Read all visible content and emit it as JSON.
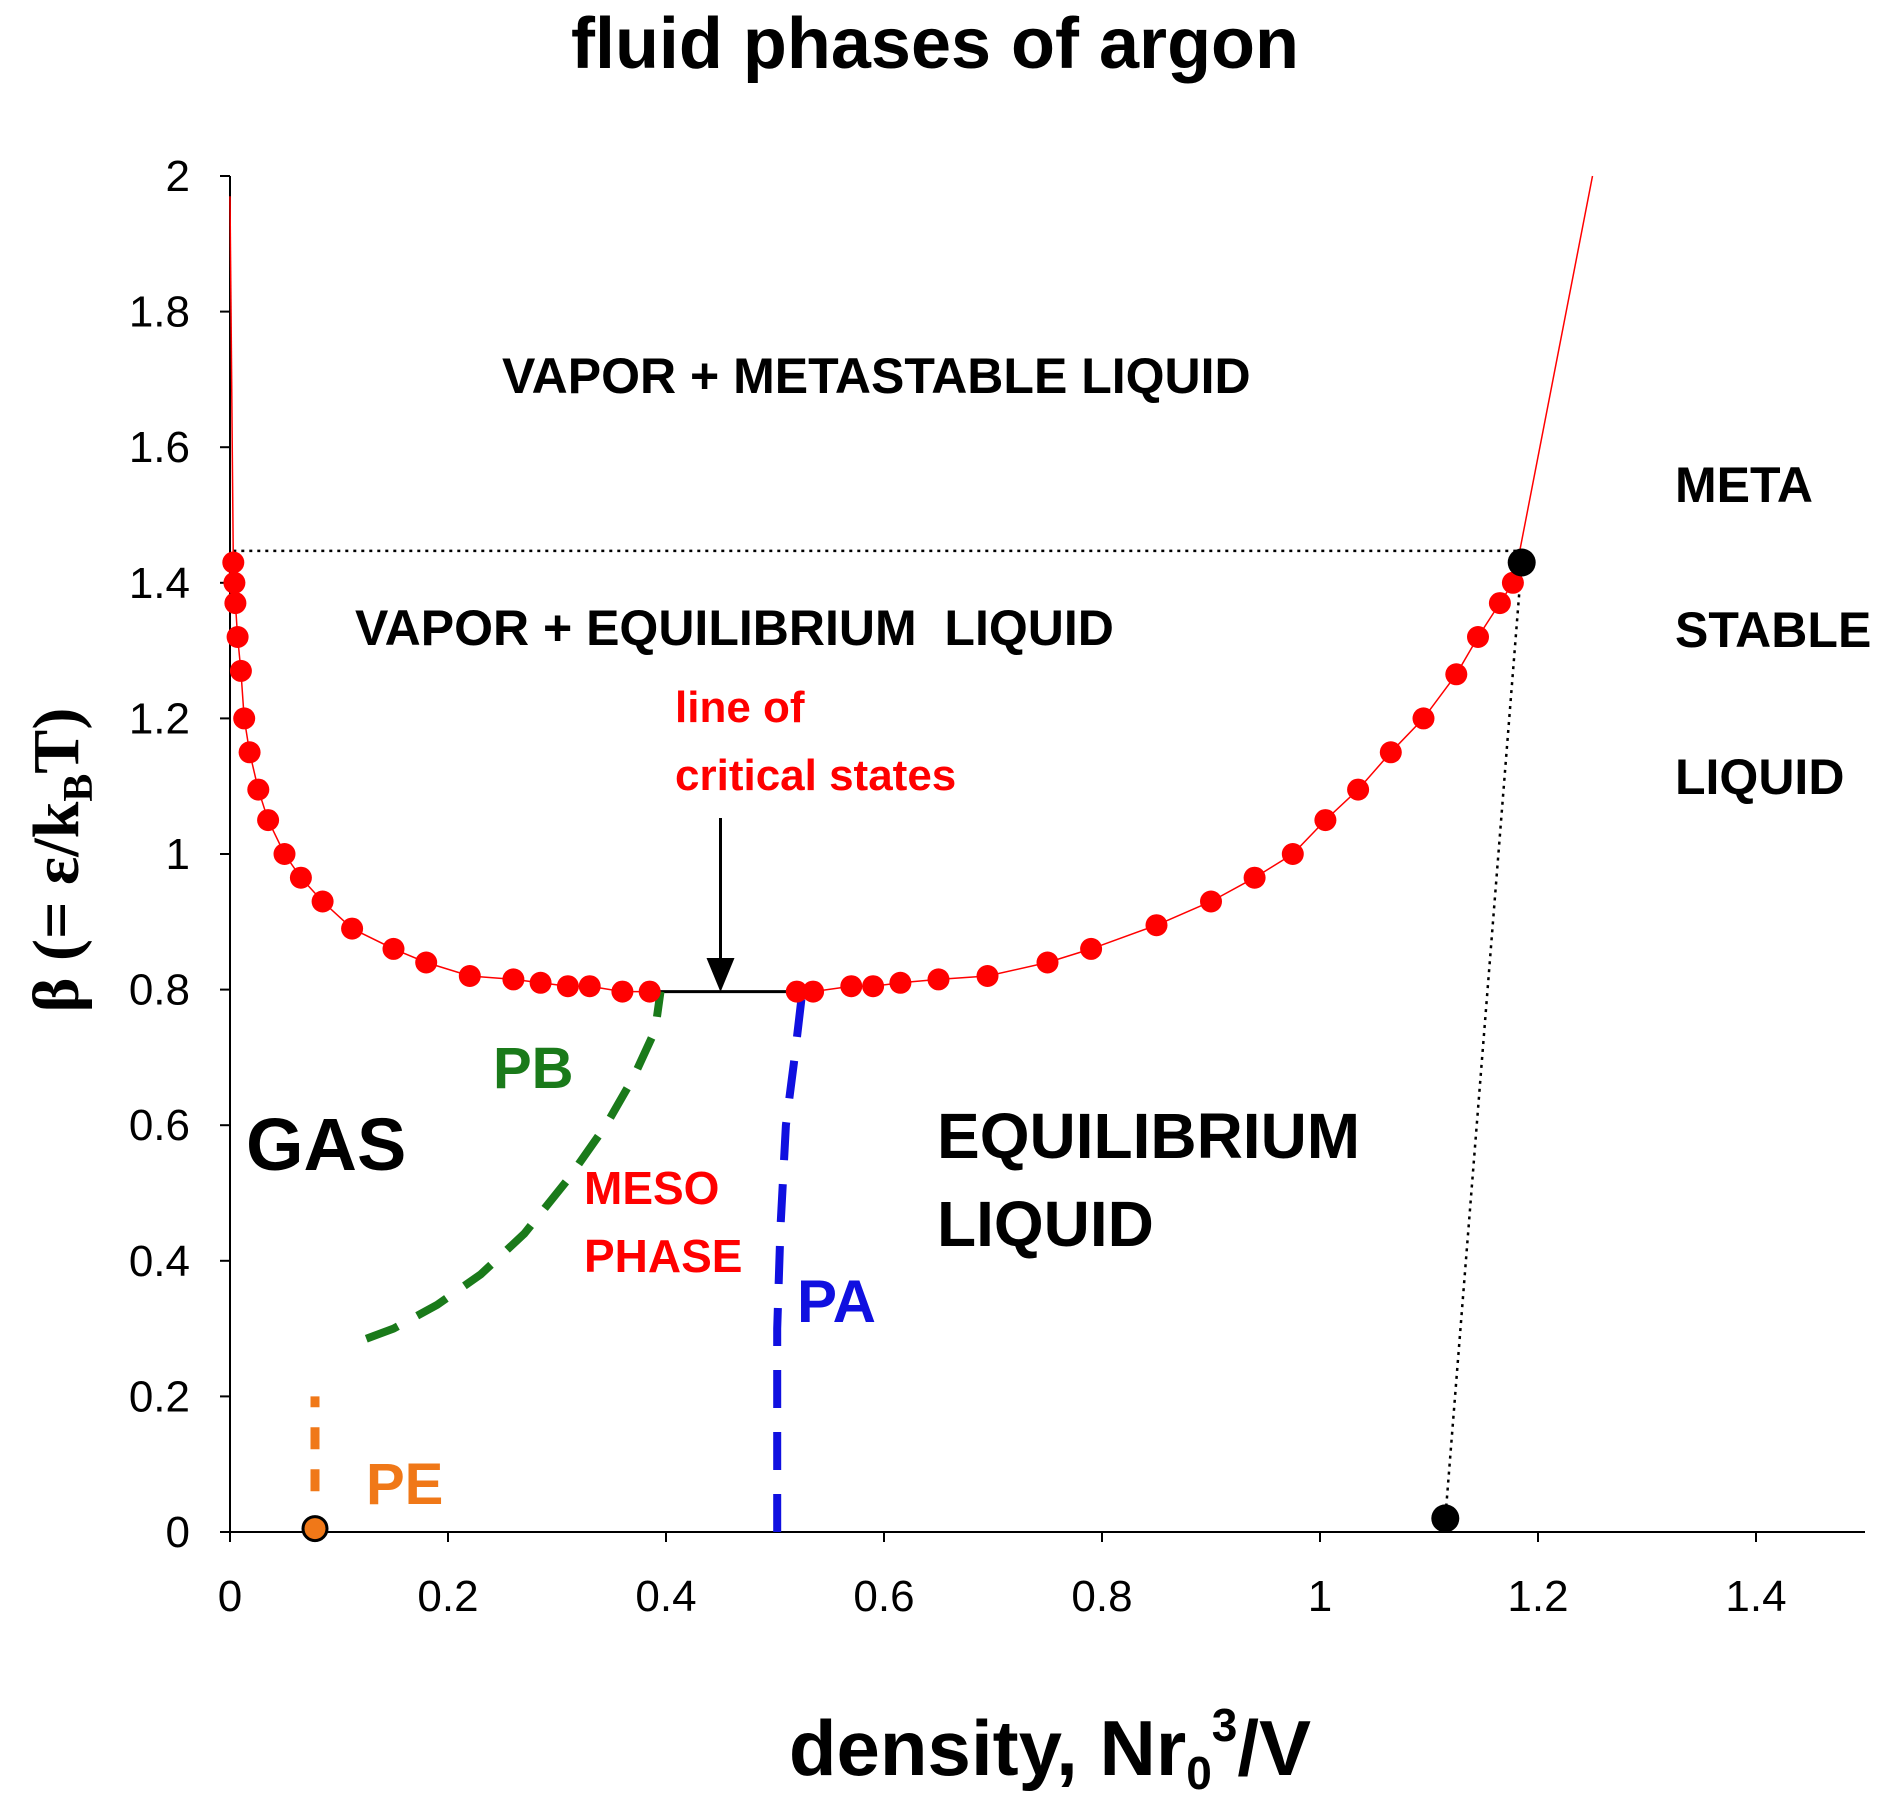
{
  "chart_data": {
    "type": "scatter",
    "title": "fluid phases of argon",
    "xlabel": {
      "main": "density, Nr",
      "sub": "0",
      "sup": "3",
      "tail": "/V"
    },
    "ylabel": {
      "main": "β (= ε/k",
      "sub": "B",
      "tail": "T)"
    },
    "xlim": [
      0,
      1.5
    ],
    "ylim": [
      0,
      2
    ],
    "xticks": [
      "0",
      "0.2",
      "0.4",
      "0.6",
      "0.8",
      "1",
      "1.2",
      "1.4"
    ],
    "yticks": [
      "0",
      "0.2",
      "0.4",
      "0.6",
      "0.8",
      "1",
      "1.2",
      "1.4",
      "1.6",
      "1.8",
      "2"
    ],
    "grid": false,
    "colors": {
      "coexistence": "#ff0000",
      "PB": "#1a7a1a",
      "PA": "#1010e0",
      "PE": "#f07818",
      "meso_text": "#ff0000",
      "critical_text": "#ff0000"
    },
    "coexistence_points": [
      [
        0.003,
        1.43
      ],
      [
        0.004,
        1.4
      ],
      [
        0.005,
        1.37
      ],
      [
        0.007,
        1.32
      ],
      [
        0.01,
        1.27
      ],
      [
        0.013,
        1.2
      ],
      [
        0.018,
        1.15
      ],
      [
        0.026,
        1.095
      ],
      [
        0.035,
        1.05
      ],
      [
        0.05,
        1.0
      ],
      [
        0.065,
        0.965
      ],
      [
        0.085,
        0.93
      ],
      [
        0.112,
        0.89
      ],
      [
        0.15,
        0.86
      ],
      [
        0.18,
        0.84
      ],
      [
        0.22,
        0.82
      ],
      [
        0.26,
        0.815
      ],
      [
        0.285,
        0.81
      ],
      [
        0.31,
        0.805
      ],
      [
        0.33,
        0.805
      ],
      [
        0.36,
        0.797
      ],
      [
        0.385,
        0.797
      ],
      [
        0.52,
        0.797
      ],
      [
        0.535,
        0.797
      ],
      [
        0.57,
        0.805
      ],
      [
        0.59,
        0.805
      ],
      [
        0.615,
        0.81
      ],
      [
        0.65,
        0.815
      ],
      [
        0.695,
        0.82
      ],
      [
        0.75,
        0.84
      ],
      [
        0.79,
        0.86
      ],
      [
        0.85,
        0.895
      ],
      [
        0.9,
        0.93
      ],
      [
        0.94,
        0.965
      ],
      [
        0.975,
        1.0
      ],
      [
        1.005,
        1.05
      ],
      [
        1.035,
        1.095
      ],
      [
        1.065,
        1.15
      ],
      [
        1.095,
        1.2
      ],
      [
        1.125,
        1.265
      ],
      [
        1.145,
        1.32
      ],
      [
        1.165,
        1.37
      ],
      [
        1.177,
        1.4
      ]
    ],
    "coexistence_extension": [
      [
        1.18,
        1.42
      ],
      [
        1.25,
        2.0
      ]
    ],
    "vapor_extension": [
      [
        0.003,
        1.43
      ],
      [
        0.0,
        1.97
      ]
    ],
    "critical_line": [
      [
        0.395,
        0.797
      ],
      [
        0.525,
        0.797
      ]
    ],
    "PB_line": [
      [
        0.125,
        0.285
      ],
      [
        0.15,
        0.3
      ],
      [
        0.19,
        0.335
      ],
      [
        0.23,
        0.38
      ],
      [
        0.27,
        0.44
      ],
      [
        0.31,
        0.52
      ],
      [
        0.345,
        0.6
      ],
      [
        0.37,
        0.67
      ],
      [
        0.39,
        0.74
      ],
      [
        0.395,
        0.797
      ]
    ],
    "PA_line": [
      [
        0.502,
        0.0
      ],
      [
        0.502,
        0.3
      ],
      [
        0.505,
        0.45
      ],
      [
        0.51,
        0.6
      ],
      [
        0.518,
        0.7
      ],
      [
        0.525,
        0.797
      ]
    ],
    "PE_line": [
      [
        0.078,
        0.06
      ],
      [
        0.078,
        0.2
      ]
    ],
    "black_points": [
      [
        1.185,
        1.43
      ],
      [
        1.115,
        0.02
      ]
    ],
    "orange_point": [
      0.078,
      0.005
    ],
    "dotted_lines": [
      [
        [
          0.003,
          1.447
        ],
        [
          1.185,
          1.447
        ]
      ],
      [
        [
          1.185,
          1.43
        ],
        [
          1.115,
          0.02
        ]
      ]
    ],
    "labels": {
      "vapor_meta": "VAPOR + METASTABLE LIQUID",
      "vapor_eq": "VAPOR + EQUILIBRIUM  LIQUID",
      "critical_1": "line of",
      "critical_2": "critical states",
      "meta_1": "META",
      "meta_2": "STABLE",
      "meta_3": "LIQUID",
      "gas": "GAS",
      "pb": "PB",
      "pa": "PA",
      "pe": "PE",
      "meso_1": "MESO",
      "meso_2": "PHASE",
      "eq_1": "EQUILIBRIUM",
      "eq_2": "LIQUID"
    }
  }
}
